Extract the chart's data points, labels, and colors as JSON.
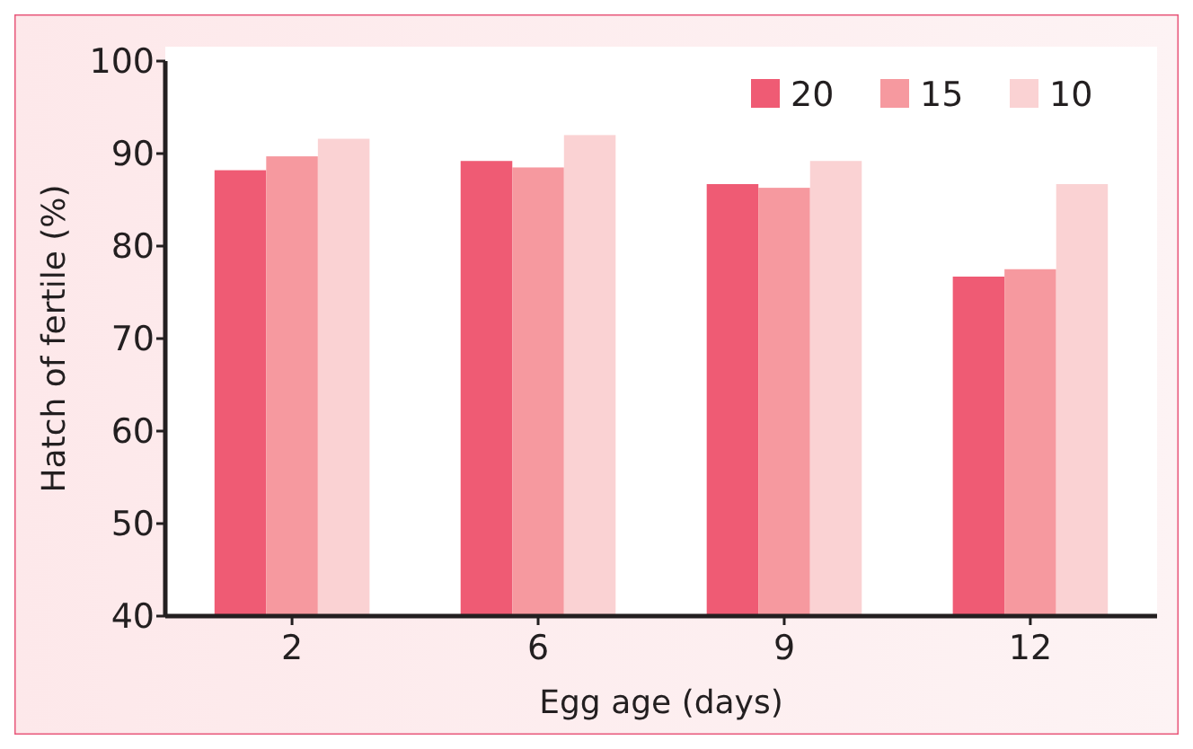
{
  "chart_data": {
    "type": "bar",
    "xlabel": "Egg age (days)",
    "ylabel": "Hatch of fertile (%)",
    "categories": [
      "2",
      "6",
      "9",
      "12"
    ],
    "series": [
      {
        "name": "20",
        "color": "#ef5b74",
        "values": [
          88.2,
          89.2,
          86.7,
          76.7
        ]
      },
      {
        "name": "15",
        "color": "#f6999f",
        "values": [
          89.7,
          88.5,
          86.3,
          77.5
        ]
      },
      {
        "name": "10",
        "color": "#fad2d3",
        "values": [
          91.6,
          92.0,
          89.2,
          86.7
        ]
      }
    ],
    "ylim": [
      40,
      100
    ],
    "yticks": [
      40,
      50,
      60,
      70,
      80,
      90,
      100
    ],
    "legend": "top right",
    "grid": false
  }
}
